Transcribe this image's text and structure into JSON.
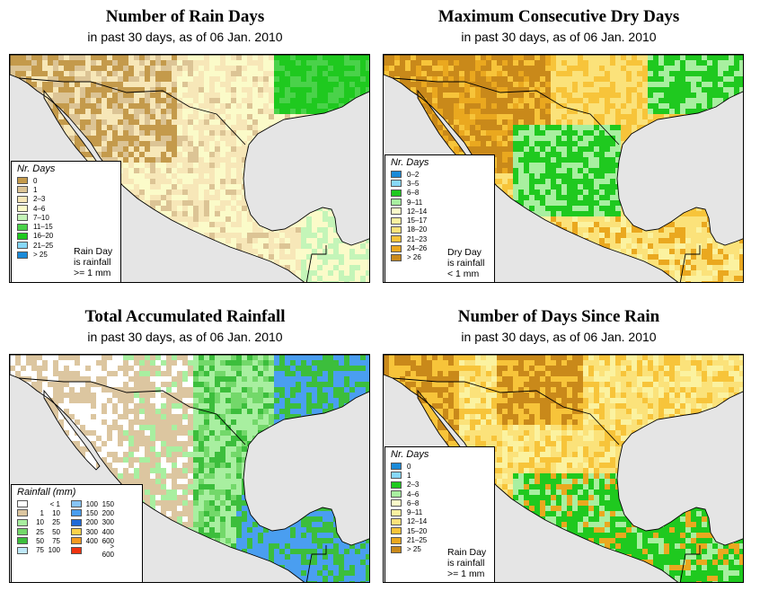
{
  "colors": {
    "land": "#fbfbc9",
    "ocean": "#e5e5e5",
    "border": "#000000"
  },
  "panels": [
    {
      "id": "rain-days",
      "title": "Number of Rain Days",
      "subtitle": "in past 30 days, as of  06 Jan. 2010",
      "legend_title": "Nr. Days",
      "legend": [
        {
          "label": "0",
          "color": "#c49a4b"
        },
        {
          "label": "1",
          "color": "#dcc495"
        },
        {
          "label": "2–3",
          "color": "#f7e7b8"
        },
        {
          "label": "4–6",
          "color": "#fbfbc9"
        },
        {
          "label": "7–10",
          "color": "#c4f5b8"
        },
        {
          "label": "11–15",
          "color": "#4ad24a"
        },
        {
          "label": "16–20",
          "color": "#1fc91f"
        },
        {
          "label": "21–25",
          "color": "#87d8f8"
        },
        {
          "label": "> 25",
          "color": "#1b8ad8"
        }
      ],
      "note": [
        "Rain Day",
        "is rainfall",
        ">= 1 mm"
      ],
      "scheme": [
        "#c49a4b",
        "#dcc495",
        "#f7e7b8",
        "#fbfbc9",
        "#c4f5b8",
        "#4ad24a",
        "#1fc91f"
      ]
    },
    {
      "id": "dry-days",
      "title": "Maximum Consecutive Dry Days",
      "subtitle": "in past 30 days, as of  06 Jan. 2010",
      "legend_title": "Nr. Days",
      "legend": [
        {
          "label": "0–2",
          "color": "#1b8ad8"
        },
        {
          "label": "3–5",
          "color": "#87d8f8"
        },
        {
          "label": "6–8",
          "color": "#1fc91f"
        },
        {
          "label": "9–11",
          "color": "#a8efa0"
        },
        {
          "label": "12–14",
          "color": "#fbfbc9"
        },
        {
          "label": "15–17",
          "color": "#fbf2a0"
        },
        {
          "label": "18–20",
          "color": "#fbe27a"
        },
        {
          "label": "21–23",
          "color": "#f7c43a"
        },
        {
          "label": "24–26",
          "color": "#eaa81f"
        },
        {
          "label": "> 26",
          "color": "#c9891a"
        }
      ],
      "note": [
        "Dry Day",
        "is rainfall",
        "< 1 mm"
      ],
      "scheme": [
        "#c9891a",
        "#eaa81f",
        "#f7c43a",
        "#fbe27a",
        "#fbf2a0",
        "#1fc91f",
        "#a8efa0"
      ]
    },
    {
      "id": "total-rainfall",
      "title": "Total Accumulated Rainfall",
      "subtitle": "in past 30 days, as of  06 Jan. 2010",
      "legend_title": "Rainfall (mm)",
      "legend_left": [
        {
          "lo": "",
          "hi": "< 1",
          "color": "#ffffff"
        },
        {
          "lo": "1",
          "hi": "10",
          "color": "#dcc6a0"
        },
        {
          "lo": "10",
          "hi": "25",
          "color": "#a8efa0"
        },
        {
          "lo": "25",
          "hi": "50",
          "color": "#73d86a"
        },
        {
          "lo": "50",
          "hi": "75",
          "color": "#3cbe3c"
        },
        {
          "lo": "75",
          "hi": "100",
          "color": "#bfe8f8"
        }
      ],
      "legend_right": [
        {
          "lo": "100",
          "hi": "150",
          "color": "#87c4f5"
        },
        {
          "lo": "150",
          "hi": "200",
          "color": "#4a9ef0"
        },
        {
          "lo": "200",
          "hi": "300",
          "color": "#1f6ad8"
        },
        {
          "lo": "300",
          "hi": "400",
          "color": "#fbd24a"
        },
        {
          "lo": "400",
          "hi": "600",
          "color": "#f59a1f"
        },
        {
          "lo": "",
          "hi": "> 600",
          "color": "#f0330f"
        }
      ],
      "scheme": [
        "#dcc6a0",
        "#dcc6a0",
        "#ffffff",
        "#a8efa0",
        "#73d86a",
        "#3cbe3c",
        "#4a9ef0"
      ]
    },
    {
      "id": "days-since-rain",
      "title": "Number of Days Since Rain",
      "subtitle": "in past 30 days, as of  06 Jan. 2010",
      "legend_title": "Nr. Days",
      "legend": [
        {
          "label": "0",
          "color": "#1b8ad8"
        },
        {
          "label": "1",
          "color": "#87d8f8"
        },
        {
          "label": "2–3",
          "color": "#1fc91f"
        },
        {
          "label": "4–6",
          "color": "#a8efa0"
        },
        {
          "label": "6–8",
          "color": "#fbfbc9"
        },
        {
          "label": "9–11",
          "color": "#fbf2a0"
        },
        {
          "label": "12–14",
          "color": "#fbe27a"
        },
        {
          "label": "15–20",
          "color": "#f7c43a"
        },
        {
          "label": "21–25",
          "color": "#eaa81f"
        },
        {
          "label": "> 25",
          "color": "#c9891a"
        }
      ],
      "note": [
        "Rain Day",
        "is rainfall",
        ">= 1 mm"
      ],
      "scheme": [
        "#c9891a",
        "#f7c43a",
        "#fbe27a",
        "#fbf2a0",
        "#1fc91f",
        "#a8efa0",
        "#eaa81f"
      ]
    }
  ]
}
